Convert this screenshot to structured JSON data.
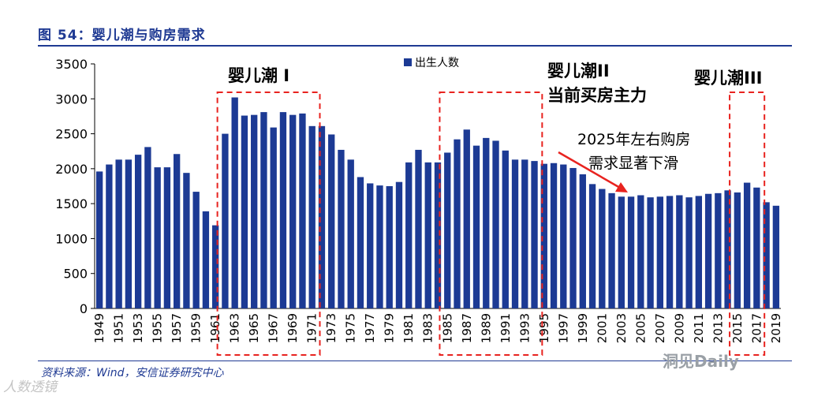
{
  "figure": {
    "title": "图 54：婴儿潮与购房需求",
    "source": "资料来源：Wind，安信证券研究中心",
    "watermark_left": "人数透镜",
    "watermark_right": "洞见Daily"
  },
  "chart_data": {
    "type": "bar",
    "title": "图 54：婴儿潮与购房需求",
    "legend": [
      "出生人数"
    ],
    "legend_position": "top-center",
    "ylim": [
      0,
      3500
    ],
    "yticks": [
      0,
      500,
      1000,
      1500,
      2000,
      2500,
      3000,
      3500
    ],
    "xtick_labels": [
      "1949",
      "1951",
      "1953",
      "1955",
      "1957",
      "1959",
      "1961",
      "1963",
      "1965",
      "1967",
      "1969",
      "1971",
      "1973",
      "1975",
      "1977",
      "1979",
      "1981",
      "1983",
      "1985",
      "1987",
      "1989",
      "1991",
      "1993",
      "1995",
      "1997",
      "1999",
      "2001",
      "2003",
      "2005",
      "2007",
      "2009",
      "2011",
      "2013",
      "2015",
      "2017",
      "2019"
    ],
    "series": [
      {
        "name": "出生人数",
        "color": "#1c3a94",
        "x": [
          1949,
          1950,
          1951,
          1952,
          1953,
          1954,
          1955,
          1956,
          1957,
          1958,
          1959,
          1960,
          1961,
          1962,
          1963,
          1964,
          1965,
          1966,
          1967,
          1968,
          1969,
          1970,
          1971,
          1972,
          1973,
          1974,
          1975,
          1976,
          1977,
          1978,
          1979,
          1980,
          1981,
          1982,
          1983,
          1984,
          1985,
          1986,
          1987,
          1988,
          1989,
          1990,
          1991,
          1992,
          1993,
          1994,
          1995,
          1996,
          1997,
          1998,
          1999,
          2000,
          2001,
          2002,
          2003,
          2004,
          2005,
          2006,
          2007,
          2008,
          2009,
          2010,
          2011,
          2012,
          2013,
          2014,
          2015,
          2016,
          2017,
          2018,
          2019
        ],
        "values": [
          1960,
          2060,
          2130,
          2130,
          2200,
          2310,
          2020,
          2020,
          2210,
          1940,
          1670,
          1390,
          1190,
          2500,
          3020,
          2760,
          2770,
          2810,
          2590,
          2810,
          2770,
          2790,
          2610,
          2610,
          2490,
          2270,
          2130,
          1880,
          1790,
          1760,
          1750,
          1810,
          2090,
          2270,
          2090,
          2090,
          2230,
          2420,
          2560,
          2330,
          2440,
          2400,
          2260,
          2130,
          2130,
          2110,
          2070,
          2080,
          2060,
          2010,
          1920,
          1780,
          1710,
          1650,
          1600,
          1600,
          1620,
          1590,
          1600,
          1610,
          1620,
          1590,
          1610,
          1640,
          1650,
          1690,
          1660,
          1800,
          1730,
          1520,
          1470
        ]
      }
    ],
    "annotations": {
      "wave1": "婴儿潮 I",
      "wave2_line1": "婴儿潮II",
      "wave2_line2": "当前买房主力",
      "wave3": "婴儿潮III",
      "note_line1": "2025年左右购房",
      "note_line2": "需求显著下滑",
      "boxes": [
        {
          "label": "婴儿潮 I",
          "from": 1962,
          "to": 1971
        },
        {
          "label": "婴儿潮II",
          "from": 1985,
          "to": 1994
        },
        {
          "label": "婴儿潮III",
          "from": 2015,
          "to": 2017
        }
      ]
    },
    "colors": {
      "bar": "#1c3a94",
      "box": "#e8231f",
      "arrow": "#e8231f",
      "title": "#1f3a93"
    }
  }
}
